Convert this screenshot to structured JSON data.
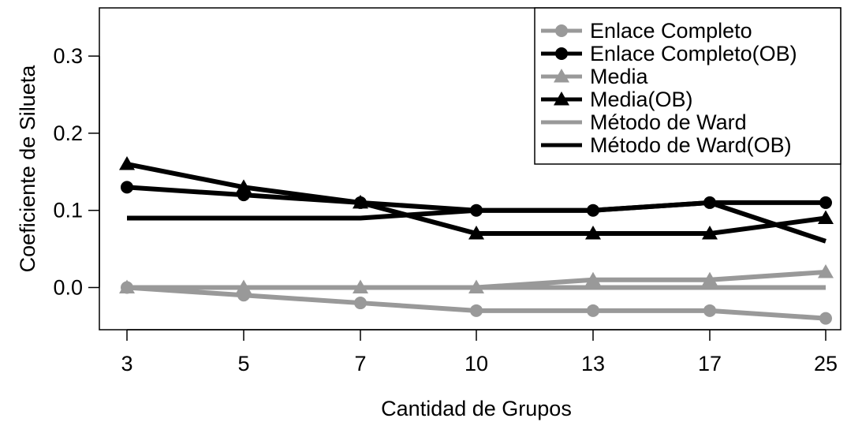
{
  "chart_data": {
    "type": "line",
    "title": "",
    "xlabel": "Cantidad de Grupos",
    "ylabel": "Coeficiente de Silueta",
    "x": [
      3,
      5,
      7,
      10,
      13,
      17,
      25
    ],
    "categories": [
      "3",
      "5",
      "7",
      "10",
      "13",
      "17",
      "25"
    ],
    "ylim": [
      -0.055,
      0.36
    ],
    "yticks": [
      0.0,
      0.1,
      0.2,
      0.3
    ],
    "ytick_labels": [
      "0.0",
      "0.1",
      "0.2",
      "0.3"
    ],
    "grid": false,
    "legend_position": "top-right",
    "series": [
      {
        "name": "Enlace Completo",
        "values": [
          0.0,
          -0.01,
          -0.02,
          -0.03,
          -0.03,
          -0.03,
          -0.04
        ],
        "color": "#999999",
        "marker": "circle"
      },
      {
        "name": "Enlace Completo(OB)",
        "values": [
          0.13,
          0.12,
          0.11,
          0.1,
          0.1,
          0.11,
          0.11
        ],
        "color": "#000000",
        "marker": "circle"
      },
      {
        "name": "Media",
        "values": [
          0.0,
          0.0,
          0.0,
          0.0,
          0.01,
          0.01,
          0.02
        ],
        "color": "#999999",
        "marker": "triangle"
      },
      {
        "name": "Media(OB)",
        "values": [
          0.16,
          0.13,
          0.11,
          0.07,
          0.07,
          0.07,
          0.09
        ],
        "color": "#000000",
        "marker": "triangle"
      },
      {
        "name": "Método de Ward",
        "values": [
          0.0,
          0.0,
          0.0,
          0.0,
          0.0,
          0.0,
          0.0
        ],
        "color": "#999999",
        "marker": "none"
      },
      {
        "name": "Método de Ward(OB)",
        "values": [
          0.09,
          0.09,
          0.09,
          0.1,
          0.1,
          0.11,
          0.06
        ],
        "color": "#000000",
        "marker": "none"
      }
    ]
  }
}
